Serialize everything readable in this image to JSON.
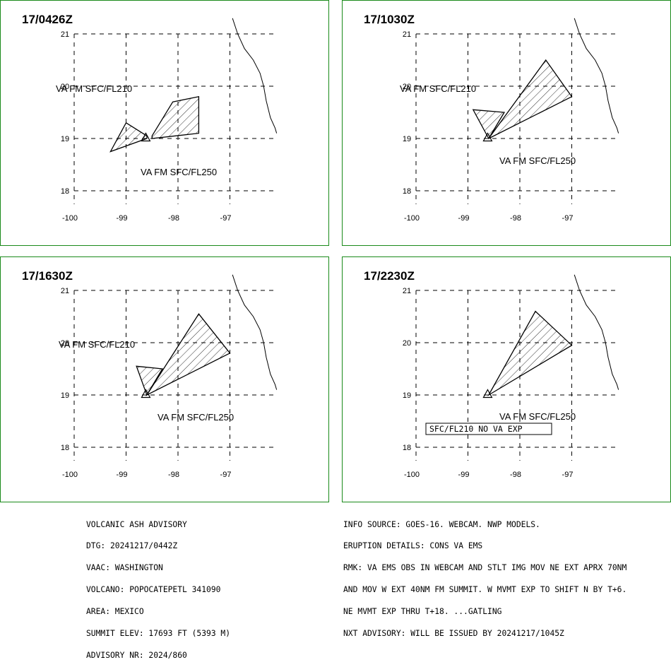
{
  "panels": [
    {
      "time": "17/0426Z",
      "labels": [
        "VA FM SFC/FL210",
        "VA FM SFC/FL250"
      ],
      "boxed_label": "",
      "ash_areas": [
        [
          [
            -98.5,
            19.05
          ],
          [
            -98.1,
            19.7
          ],
          [
            -97.6,
            19.8
          ],
          [
            -97.6,
            19.1
          ],
          [
            -98.5,
            19.0
          ]
        ],
        [
          [
            -98.6,
            19.05
          ],
          [
            -99.0,
            19.3
          ],
          [
            -99.3,
            18.75
          ],
          [
            -98.6,
            19.0
          ]
        ]
      ]
    },
    {
      "time": "17/1030Z",
      "labels": [
        "VA FM SFC/FL210",
        "VA FM SFC/FL250"
      ],
      "boxed_label": "",
      "ash_areas": [
        [
          [
            -98.6,
            19.0
          ],
          [
            -97.5,
            20.5
          ],
          [
            -97.0,
            19.8
          ],
          [
            -98.6,
            19.0
          ]
        ],
        [
          [
            -98.6,
            19.0
          ],
          [
            -98.9,
            19.55
          ],
          [
            -98.3,
            19.5
          ],
          [
            -98.6,
            19.0
          ]
        ]
      ]
    },
    {
      "time": "17/1630Z",
      "labels": [
        "VA FM SFC/FL210",
        "VA FM SFC/FL250"
      ],
      "boxed_label": "",
      "ash_areas": [
        [
          [
            -98.6,
            19.0
          ],
          [
            -97.6,
            20.55
          ],
          [
            -97.0,
            19.8
          ],
          [
            -98.6,
            19.0
          ]
        ],
        [
          [
            -98.6,
            19.0
          ],
          [
            -98.8,
            19.55
          ],
          [
            -98.3,
            19.5
          ],
          [
            -98.6,
            19.0
          ]
        ]
      ]
    },
    {
      "time": "17/2230Z",
      "labels": [
        "VA FM SFC/FL250"
      ],
      "boxed_label": "SFC/FL210 NO VA EXP",
      "ash_areas": [
        [
          [
            -98.6,
            19.0
          ],
          [
            -97.7,
            20.6
          ],
          [
            -97.0,
            19.95
          ],
          [
            -98.6,
            19.0
          ]
        ]
      ]
    }
  ],
  "map": {
    "lon_range": [
      -100,
      -96.1
    ],
    "lat_range": [
      17.5,
      21.3
    ],
    "lon_ticks": [
      "-100",
      "-99",
      "-98",
      "-97"
    ],
    "lat_ticks": [
      "21",
      "20",
      "19",
      "18"
    ],
    "volcano": [
      -98.62,
      19.02
    ],
    "coastline": [
      [
        -96.95,
        21.3
      ],
      [
        -96.85,
        21.0
      ],
      [
        -96.72,
        20.72
      ],
      [
        -96.55,
        20.5
      ],
      [
        -96.42,
        20.25
      ],
      [
        -96.35,
        20.0
      ],
      [
        -96.3,
        19.72
      ],
      [
        -96.22,
        19.4
      ],
      [
        -96.13,
        19.2
      ],
      [
        -96.1,
        19.1
      ]
    ]
  },
  "advisory_left": [
    "VOLCANIC ASH ADVISORY",
    "DTG: 20241217/0442Z",
    "VAAC: WASHINGTON",
    "VOLCANO: POPOCATEPETL 341090",
    "AREA: MEXICO",
    "SUMMIT ELEV: 17693 FT (5393 M)",
    "ADVISORY NR: 2024/860"
  ],
  "advisory_right": [
    "INFO SOURCE: GOES-16. WEBCAM. NWP MODELS.",
    "ERUPTION DETAILS: CONS VA EMS",
    "RMK: VA EMS OBS IN WEBCAM AND STLT IMG MOV NE EXT APRX 70NM",
    "AND MOV W EXT 40NM FM SUMMIT. W MVMT EXP TO SHIFT N BY T+6.",
    "NE MVMT EXP THRU T+18. ...GATLING",
    "NXT ADVISORY: WILL BE ISSUED BY 20241217/1045Z"
  ],
  "colors": {
    "frame": "#1a8a1a",
    "ink": "#000000"
  }
}
